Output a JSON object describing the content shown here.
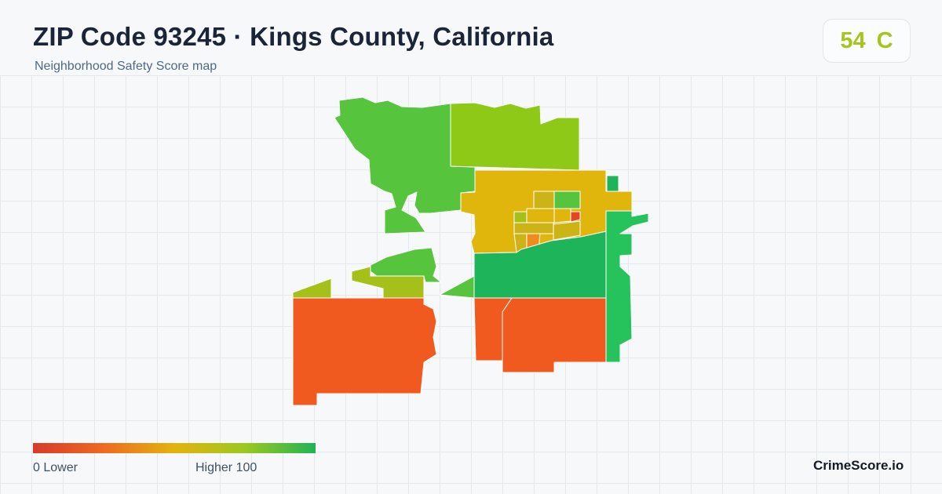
{
  "header": {
    "title": "ZIP Code 93245 · Kings County, California",
    "subtitle": "Neighborhood Safety Score map"
  },
  "score": {
    "value": "54",
    "grade": "C",
    "color": "#a8c41a"
  },
  "legend": {
    "low_text": "0  Lower",
    "high_text": "Higher  100",
    "scale_min": 0,
    "scale_max": 100,
    "gradient_colors": [
      "#d83a2a",
      "#ee6a20",
      "#e3b30e",
      "#9cc81e",
      "#1fb454"
    ]
  },
  "map": {
    "colors": {
      "red": "#f05a1e",
      "dark_orange": "#e4461e",
      "orange": "#ef8c1c",
      "mustard": "#e0b60c",
      "olive": "#cdb416",
      "yellow_green": "#a6c01a",
      "lime": "#8ec918",
      "light_green": "#56c43c",
      "green": "#26c35c",
      "dark_green": "#1eb55a"
    }
  },
  "brand": "CrimeScore.io"
}
